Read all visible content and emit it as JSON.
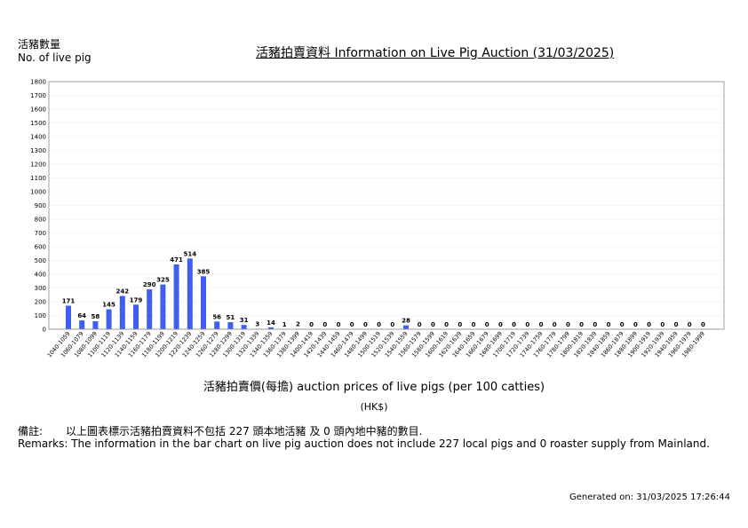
{
  "header": {
    "ylabel_cn": "活豬數量",
    "ylabel_en": "No. of live pig",
    "title": "活豬拍賣資料 Information on Live Pig Auction (31/03/2025)"
  },
  "axis": {
    "xlabel": "活豬拍賣價(每擔) auction prices of live pigs (per 100 catties)",
    "unit": "(HK$)"
  },
  "remarks": {
    "cn_label": "備註:",
    "cn_text": "以上圖表標示活豬拍賣資料不包括 227 頭本地活豬 及 0 頭內地中豬的數目.",
    "en_text": "Remarks: The information in the bar chart on live pig auction does not include 227 local pigs and 0 roaster supply from Mainland."
  },
  "footer": {
    "generated": "Generated on: 31/03/2025 17:26:44"
  },
  "colors": {
    "bar": "#3f5ff0",
    "grid": "#d9d9d9",
    "axis": "#888888"
  },
  "chart_data": {
    "type": "bar",
    "title": "活豬拍賣資料 Information on Live Pig Auction (31/03/2025)",
    "xlabel": "活豬拍賣價(每擔) auction prices of live pigs (per 100 catties)",
    "ylabel": "No. of live pig",
    "ylim": [
      0,
      1800
    ],
    "yticks": [
      0,
      100,
      200,
      300,
      400,
      500,
      600,
      700,
      800,
      900,
      1000,
      1100,
      1200,
      1300,
      1400,
      1500,
      1600,
      1700,
      1800
    ],
    "grid": true,
    "categories": [
      "1040-1059",
      "1060-1079",
      "1080-1099",
      "1100-1119",
      "1120-1139",
      "1140-1159",
      "1160-1179",
      "1180-1199",
      "1200-1219",
      "1220-1239",
      "1240-1259",
      "1260-1279",
      "1280-1299",
      "1300-1319",
      "1320-1339",
      "1340-1359",
      "1360-1379",
      "1380-1399",
      "1400-1419",
      "1420-1439",
      "1440-1459",
      "1460-1479",
      "1480-1499",
      "1500-1519",
      "1520-1539",
      "1540-1559",
      "1560-1579",
      "1580-1599",
      "1600-1619",
      "1620-1639",
      "1640-1659",
      "1660-1679",
      "1680-1699",
      "1700-1719",
      "1720-1739",
      "1740-1759",
      "1760-1779",
      "1780-1799",
      "1800-1819",
      "1820-1839",
      "1840-1859",
      "1860-1879",
      "1880-1899",
      "1900-1919",
      "1920-1939",
      "1940-1959",
      "1960-1979",
      "1980-1999"
    ],
    "values": [
      171,
      64,
      58,
      145,
      242,
      179,
      290,
      325,
      471,
      514,
      385,
      56,
      51,
      31,
      3,
      14,
      1,
      2,
      0,
      0,
      0,
      0,
      0,
      0,
      0,
      28,
      0,
      0,
      0,
      0,
      0,
      0,
      0,
      0,
      0,
      0,
      0,
      0,
      0,
      0,
      0,
      0,
      0,
      0,
      0,
      0,
      0,
      0
    ]
  }
}
